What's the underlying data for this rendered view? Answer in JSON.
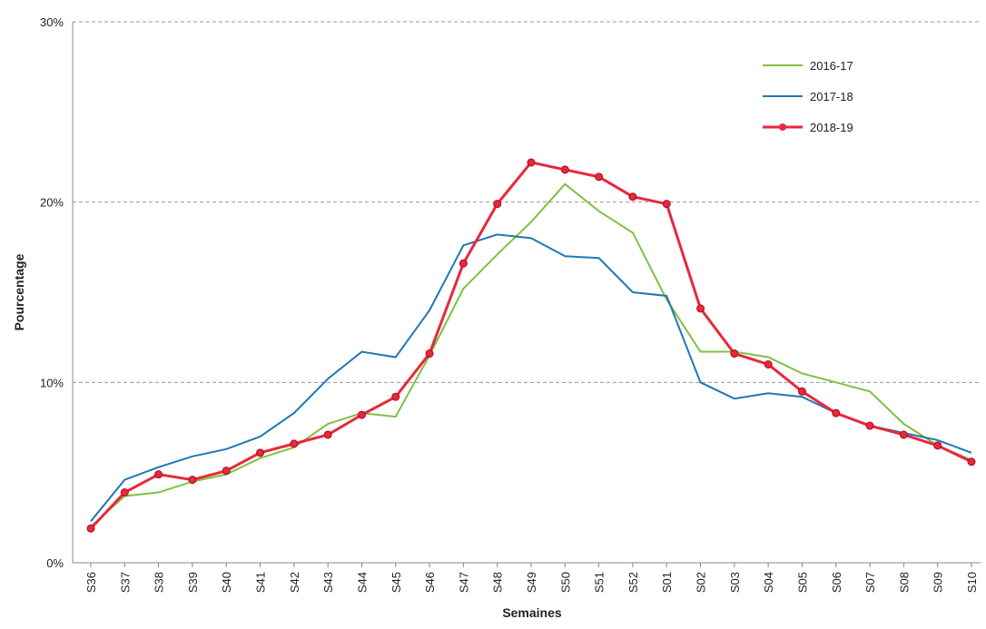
{
  "chart_data": {
    "type": "line",
    "x_label": "Semaines",
    "y_label": "Pourcentage",
    "categories": [
      "S36",
      "S37",
      "S38",
      "S39",
      "S40",
      "S41",
      "S42",
      "S43",
      "S44",
      "S45",
      "S46",
      "S47",
      "S48",
      "S49",
      "S50",
      "S51",
      "S52",
      "S01",
      "S02",
      "S03",
      "S04",
      "S05",
      "S06",
      "S07",
      "S08",
      "S09",
      "S10"
    ],
    "series": [
      {
        "name": "2016-17",
        "color": "#7dc242",
        "markers": false,
        "values": [
          2.0,
          3.7,
          3.9,
          4.5,
          4.9,
          5.8,
          6.4,
          7.7,
          8.3,
          8.1,
          11.5,
          15.2,
          17.1,
          18.9,
          21.0,
          19.5,
          18.3,
          14.6,
          11.7,
          11.7,
          11.4,
          10.5,
          10.0,
          9.5,
          7.7,
          6.5,
          5.7
        ]
      },
      {
        "name": "2017-18",
        "color": "#1f78b4",
        "markers": false,
        "values": [
          2.3,
          4.6,
          5.3,
          5.9,
          6.3,
          7.0,
          8.3,
          10.2,
          11.7,
          11.4,
          14.0,
          17.6,
          18.2,
          18.0,
          17.0,
          16.9,
          15.0,
          14.8,
          10.0,
          9.1,
          9.4,
          9.2,
          8.3,
          7.6,
          7.2,
          6.8,
          6.1
        ]
      },
      {
        "name": "2018-19",
        "color": "#e8283c",
        "markers": true,
        "values": [
          1.9,
          3.9,
          4.9,
          4.6,
          5.1,
          6.1,
          6.6,
          7.1,
          8.2,
          9.2,
          11.6,
          16.6,
          19.9,
          22.2,
          21.8,
          21.4,
          20.3,
          19.9,
          14.1,
          11.6,
          11.0,
          9.5,
          8.3,
          7.6,
          7.1,
          6.5,
          5.6
        ]
      }
    ],
    "ylim": [
      0,
      30
    ],
    "yticks": [
      {
        "value": 0,
        "label": "0%"
      },
      {
        "value": 10,
        "label": "10%"
      },
      {
        "value": 20,
        "label": "20%"
      },
      {
        "value": 30,
        "label": "30%"
      }
    ],
    "grid": true,
    "legend": "top-right"
  }
}
